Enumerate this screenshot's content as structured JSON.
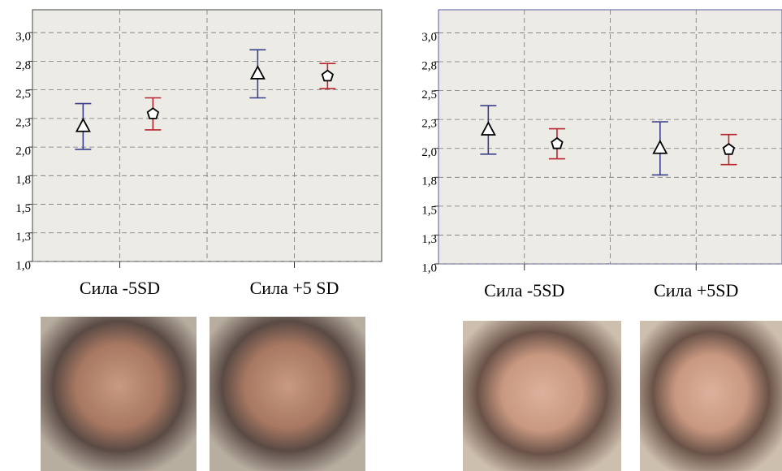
{
  "chart_data": [
    {
      "type": "errorbar",
      "categories": [
        "Сила -5SD",
        "Сила +5 SD"
      ],
      "ylim": [
        1.0,
        3.2
      ],
      "yticks": [
        {
          "value": 1.0,
          "label": "1,0"
        },
        {
          "value": 1.25,
          "label": "1,3"
        },
        {
          "value": 1.5,
          "label": "1,5"
        },
        {
          "value": 1.75,
          "label": "1,8"
        },
        {
          "value": 2.0,
          "label": "2,0"
        },
        {
          "value": 2.25,
          "label": "2,3"
        },
        {
          "value": 2.5,
          "label": "2,5"
        },
        {
          "value": 2.75,
          "label": "2,8"
        },
        {
          "value": 3.0,
          "label": "3,0"
        }
      ],
      "grid": true,
      "series": [
        {
          "marker": "triangle",
          "color": "#3a3f8a",
          "values": [
            2.18,
            2.64
          ],
          "errors": [
            0.2,
            0.21
          ]
        },
        {
          "marker": "pentagon",
          "color": "#b8252e",
          "values": [
            2.29,
            2.62
          ],
          "errors": [
            0.14,
            0.11
          ]
        }
      ]
    },
    {
      "type": "errorbar",
      "categories": [
        "Сила -5SD",
        "Сила +5SD"
      ],
      "ylim": [
        1.0,
        3.2
      ],
      "yticks": [
        {
          "value": 1.0,
          "label": "1,0"
        },
        {
          "value": 1.25,
          "label": "1,3"
        },
        {
          "value": 1.5,
          "label": "1,5"
        },
        {
          "value": 1.75,
          "label": "1,8"
        },
        {
          "value": 2.0,
          "label": "2,0"
        },
        {
          "value": 2.25,
          "label": "2,3"
        },
        {
          "value": 2.5,
          "label": "2,5"
        },
        {
          "value": 2.75,
          "label": "2,8"
        },
        {
          "value": 3.0,
          "label": "3,0"
        }
      ],
      "grid": true,
      "series": [
        {
          "marker": "triangle",
          "color": "#3a3f8a",
          "values": [
            2.16,
            2.0
          ],
          "errors": [
            0.21,
            0.23
          ]
        },
        {
          "marker": "pentagon",
          "color": "#b8252e",
          "values": [
            2.04,
            1.99
          ],
          "errors": [
            0.13,
            0.13
          ]
        }
      ]
    }
  ]
}
